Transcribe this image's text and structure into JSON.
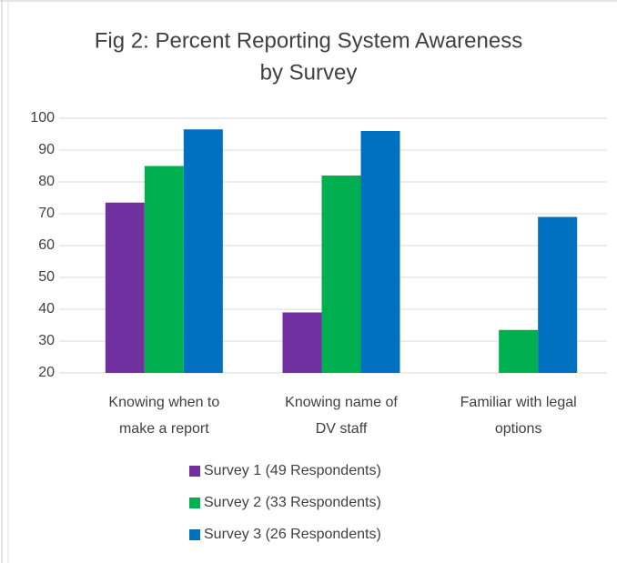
{
  "chart_data": {
    "type": "bar",
    "title": [
      "Fig 2: Percent Reporting System Awareness",
      "by Survey"
    ],
    "categories": [
      [
        "Knowing when to",
        "make a report"
      ],
      [
        "Knowing name of",
        "DV staff"
      ],
      [
        "Familiar with legal",
        "options"
      ]
    ],
    "series": [
      {
        "name": "Survey 1 (49 Respondents)",
        "color": "#7030a0",
        "values": [
          73.5,
          39,
          null
        ]
      },
      {
        "name": "Survey 2 (33 Respondents)",
        "color": "#00b050",
        "values": [
          85,
          82,
          33.5
        ]
      },
      {
        "name": "Survey 3 (26 Respondents)",
        "color": "#0070c0",
        "values": [
          96.5,
          96,
          69
        ]
      }
    ],
    "ylim": [
      20,
      100
    ],
    "yticks": [
      20,
      30,
      40,
      50,
      60,
      70,
      80,
      90,
      100
    ],
    "grid": true,
    "legend": "bottom"
  }
}
